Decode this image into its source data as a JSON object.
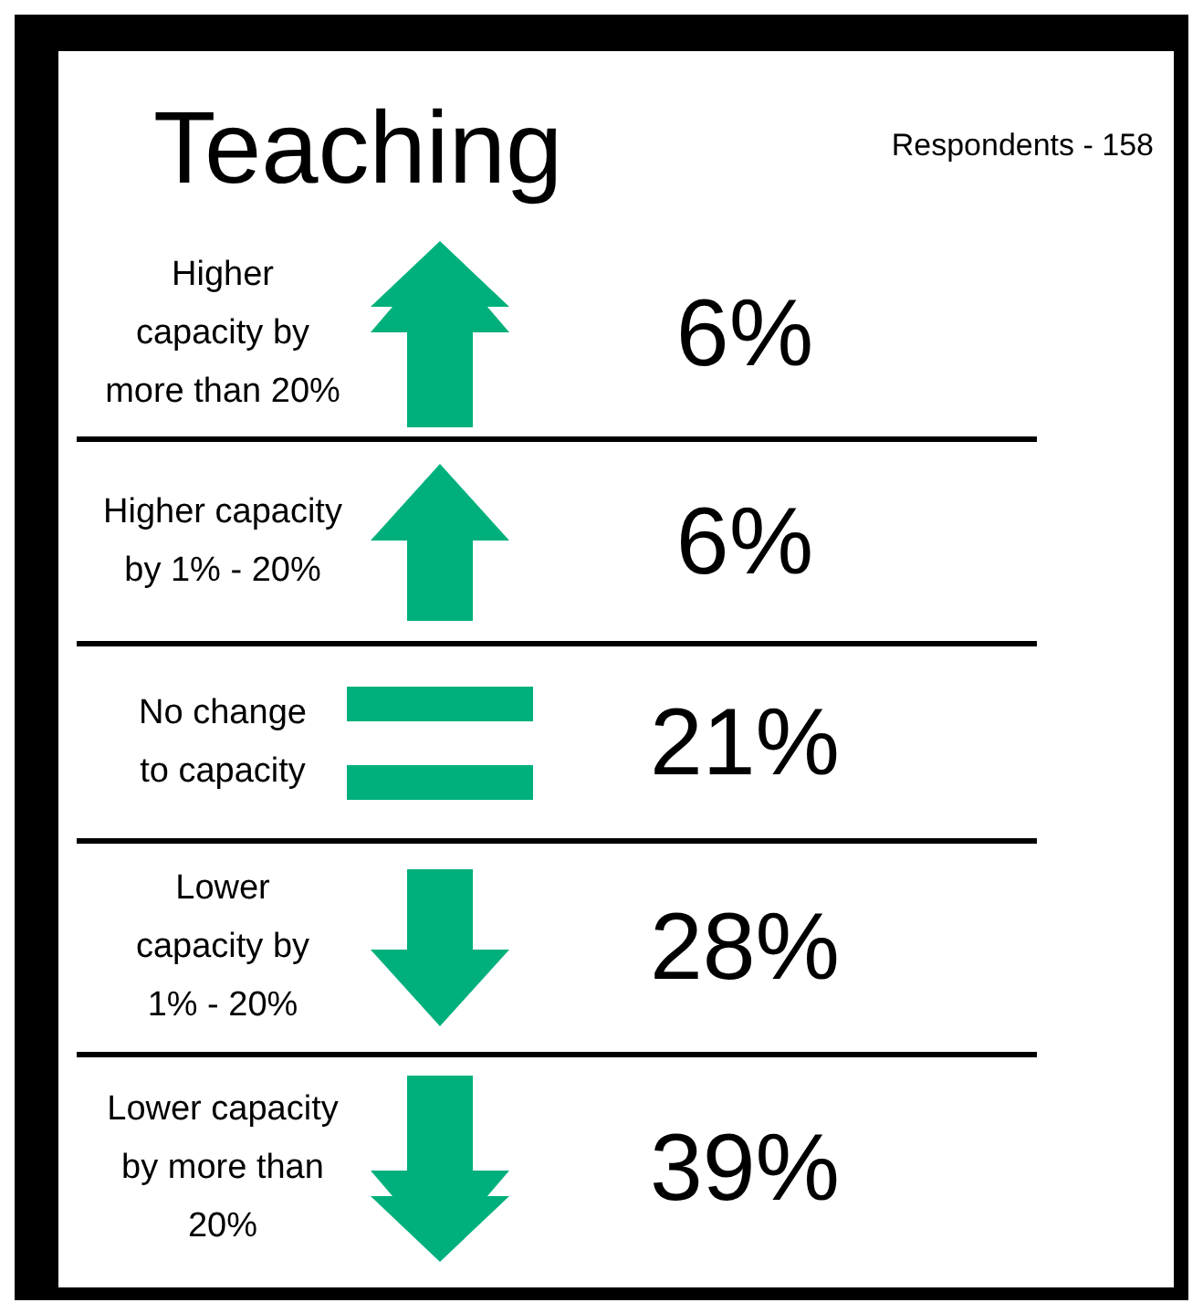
{
  "chart_data": {
    "type": "other",
    "title": "Teaching",
    "annotations": [
      "Respondents - 158"
    ],
    "categories": [
      "Higher\ncapacity by\nmore than 20%",
      "Higher capacity\nby 1% - 20%",
      "No change\nto capacity",
      "Lower\ncapacity by\n1% - 20%",
      "Lower capacity\nby more than\n20%"
    ],
    "values": [
      6,
      6,
      21,
      28,
      39
    ],
    "value_labels": [
      "6%",
      "6%",
      "21%",
      "28%",
      "39%"
    ],
    "color": "#00b07c"
  }
}
